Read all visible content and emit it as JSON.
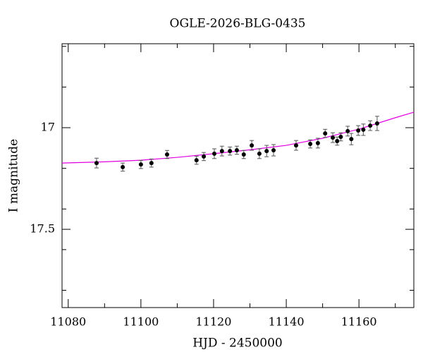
{
  "chart_data": {
    "type": "scatter",
    "title": "OGLE-2026-BLG-0435",
    "x_label": "HJD - 2450000",
    "y_label": "I magnitude",
    "xlim": [
      11078.3,
      11175.1
    ],
    "ylim": [
      17.885,
      16.587
    ],
    "xticks": [
      11080,
      11100,
      11120,
      11140,
      11160
    ],
    "x_minor_ticks": [
      11090,
      11110,
      11130,
      11150,
      11170
    ],
    "yticks": [
      17,
      17.5
    ],
    "y_minor_ticks": [
      16.6,
      16.8,
      17.2,
      17.4,
      17.6,
      17.8
    ],
    "series": [
      {
        "color": "#000000",
        "error_color": "#555555",
        "x": [
          11087.8,
          11095.0,
          11100.0,
          11102.9,
          11107.2,
          11115.3,
          11117.3,
          11120.2,
          11122.3,
          11124.5,
          11126.4,
          11128.3,
          11130.5,
          11132.6,
          11134.6,
          11136.5,
          11142.7,
          11146.6,
          11148.7,
          11150.7,
          11152.8,
          11154.0,
          11155.0,
          11156.9,
          11157.9,
          11159.8,
          11161.2,
          11163.1,
          11165.0
        ],
        "values": [
          17.174,
          17.194,
          17.181,
          17.174,
          17.132,
          17.16,
          17.142,
          17.128,
          17.115,
          17.115,
          17.111,
          17.132,
          17.087,
          17.128,
          17.115,
          17.111,
          17.087,
          17.08,
          17.076,
          17.028,
          17.049,
          17.066,
          17.045,
          17.017,
          17.056,
          17.014,
          17.01,
          16.99,
          16.979
        ],
        "errors": [
          0.024,
          0.02,
          0.02,
          0.02,
          0.02,
          0.02,
          0.02,
          0.024,
          0.024,
          0.02,
          0.02,
          0.02,
          0.024,
          0.024,
          0.028,
          0.028,
          0.024,
          0.02,
          0.024,
          0.02,
          0.024,
          0.02,
          0.02,
          0.024,
          0.028,
          0.024,
          0.028,
          0.024,
          0.035
        ]
      }
    ],
    "model": {
      "color": "#e100e1",
      "x": [
        11078.3,
        11090,
        11100,
        11110,
        11120,
        11130,
        11140,
        11150,
        11160,
        11170,
        11175.1
      ],
      "values": [
        17.174,
        17.168,
        17.16,
        17.146,
        17.128,
        17.109,
        17.087,
        17.052,
        17.007,
        16.951,
        16.924
      ]
    }
  }
}
